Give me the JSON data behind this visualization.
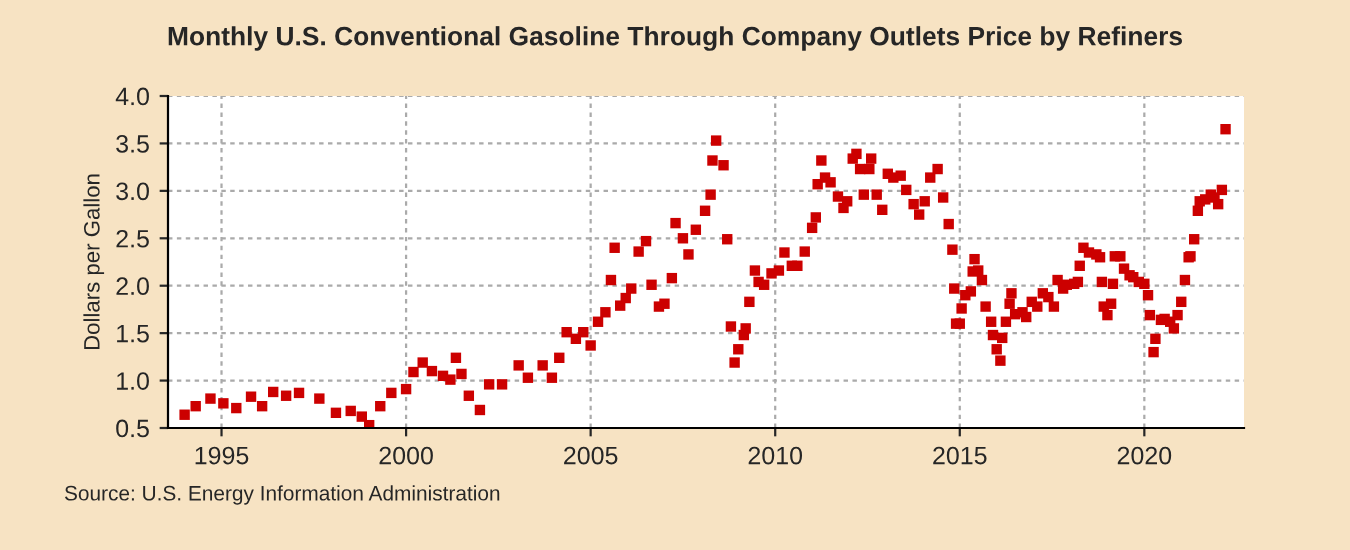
{
  "chart_data": {
    "type": "scatter",
    "title": "Monthly U.S. Conventional Gasoline Through Company Outlets Price by Refiners",
    "ylabel": "Dollars per Gallon",
    "annotations": [
      "Source: U.S. Energy Information Administration"
    ],
    "x": [
      1994.0,
      1994.3,
      1994.7,
      1995.05,
      1995.4,
      1995.8,
      1996.1,
      1996.4,
      1996.75,
      1997.1,
      1997.65,
      1998.1,
      1998.5,
      1998.8,
      1999.0,
      1999.3,
      1999.6,
      2000.0,
      2000.2,
      2000.45,
      2000.7,
      2001.0,
      2001.2,
      2001.35,
      2001.5,
      2001.7,
      2002.0,
      2002.25,
      2002.6,
      2003.05,
      2003.3,
      2003.7,
      2003.95,
      2004.15,
      2004.35,
      2004.6,
      2004.8,
      2005.0,
      2005.2,
      2005.4,
      2005.55,
      2005.65,
      2005.8,
      2005.95,
      2006.1,
      2006.3,
      2006.5,
      2006.65,
      2006.85,
      2007.0,
      2007.2,
      2007.3,
      2007.5,
      2007.65,
      2007.85,
      2008.1,
      2008.25,
      2008.3,
      2008.4,
      2008.6,
      2008.7,
      2008.8,
      2008.9,
      2009.0,
      2009.15,
      2009.2,
      2009.3,
      2009.45,
      2009.55,
      2009.7,
      2009.9,
      2010.1,
      2010.25,
      2010.45,
      2010.6,
      2010.8,
      2011.0,
      2011.1,
      2011.15,
      2011.25,
      2011.35,
      2011.5,
      2011.7,
      2011.85,
      2011.95,
      2012.1,
      2012.2,
      2012.3,
      2012.4,
      2012.55,
      2012.6,
      2012.75,
      2012.9,
      2013.05,
      2013.2,
      2013.4,
      2013.55,
      2013.75,
      2013.9,
      2014.05,
      2014.2,
      2014.4,
      2014.55,
      2014.7,
      2014.8,
      2014.85,
      2014.9,
      2015.0,
      2015.05,
      2015.15,
      2015.3,
      2015.35,
      2015.4,
      2015.5,
      2015.6,
      2015.7,
      2015.85,
      2015.9,
      2016.0,
      2016.1,
      2016.15,
      2016.25,
      2016.35,
      2016.4,
      2016.5,
      2016.7,
      2016.8,
      2016.95,
      2017.1,
      2017.25,
      2017.4,
      2017.55,
      2017.65,
      2017.8,
      2017.9,
      2018.1,
      2018.2,
      2018.25,
      2018.35,
      2018.5,
      2018.7,
      2018.8,
      2018.85,
      2018.9,
      2019.0,
      2019.1,
      2019.15,
      2019.2,
      2019.35,
      2019.45,
      2019.6,
      2019.7,
      2019.85,
      2020.0,
      2020.1,
      2020.15,
      2020.25,
      2020.3,
      2020.45,
      2020.55,
      2020.7,
      2020.8,
      2020.9,
      2021.0,
      2021.1,
      2021.2,
      2021.25,
      2021.35,
      2021.45,
      2021.5,
      2021.65,
      2021.8,
      2021.9,
      2022.0,
      2022.1,
      2022.2
    ],
    "series": [
      {
        "color": "#cc0000",
        "values": [
          0.64,
          0.73,
          0.81,
          0.76,
          0.71,
          0.83,
          0.73,
          0.88,
          0.84,
          0.87,
          0.81,
          0.66,
          0.68,
          0.62,
          0.53,
          0.73,
          0.87,
          0.91,
          1.09,
          1.19,
          1.1,
          1.05,
          1.01,
          1.24,
          1.07,
          0.84,
          0.69,
          0.96,
          0.96,
          1.16,
          1.03,
          1.16,
          1.03,
          1.24,
          1.51,
          1.44,
          1.51,
          1.37,
          1.62,
          1.72,
          2.06,
          2.4,
          1.79,
          1.87,
          1.97,
          2.36,
          2.47,
          2.01,
          1.78,
          1.81,
          2.08,
          2.66,
          2.5,
          2.33,
          2.59,
          2.79,
          2.96,
          3.32,
          3.53,
          3.27,
          2.49,
          1.57,
          1.19,
          1.33,
          1.48,
          1.55,
          1.83,
          2.16,
          2.04,
          2.01,
          2.13,
          2.16,
          2.35,
          2.21,
          2.21,
          2.36,
          2.61,
          2.72,
          3.07,
          3.32,
          3.14,
          3.09,
          2.94,
          2.82,
          2.89,
          3.34,
          3.39,
          3.23,
          2.96,
          3.23,
          3.34,
          2.96,
          2.8,
          3.18,
          3.14,
          3.16,
          3.01,
          2.86,
          2.75,
          2.89,
          3.14,
          3.23,
          2.93,
          2.65,
          2.38,
          1.97,
          1.6,
          1.6,
          1.76,
          1.9,
          1.94,
          2.15,
          2.28,
          2.16,
          2.06,
          1.78,
          1.62,
          1.48,
          1.33,
          1.21,
          1.45,
          1.62,
          1.81,
          1.92,
          1.7,
          1.72,
          1.67,
          1.83,
          1.78,
          1.92,
          1.88,
          1.78,
          2.06,
          1.97,
          2.01,
          2.02,
          2.04,
          2.21,
          2.4,
          2.35,
          2.33,
          2.3,
          2.04,
          1.78,
          1.69,
          1.81,
          2.02,
          2.31,
          2.31,
          2.18,
          2.11,
          2.09,
          2.04,
          2.02,
          1.9,
          1.69,
          1.3,
          1.44,
          1.64,
          1.65,
          1.62,
          1.55,
          1.69,
          1.83,
          2.06,
          2.3,
          2.31,
          2.49,
          2.79,
          2.89,
          2.91,
          2.96,
          2.93,
          2.86,
          3.01,
          3.65
        ]
      }
    ],
    "xlim": [
      1993.55,
      2022.7
    ],
    "xticks": [
      1995,
      2000,
      2005,
      2010,
      2015,
      2020
    ],
    "ylim": [
      0.5,
      4.0
    ],
    "yticks": [
      {
        "value": 0.5,
        "label": "0.5"
      },
      {
        "value": 1.0,
        "label": "1.0"
      },
      {
        "value": 1.5,
        "label": "1.5"
      },
      {
        "value": 2.0,
        "label": "2.0"
      },
      {
        "value": 2.5,
        "label": "2.5"
      },
      {
        "value": 3.0,
        "label": "3.0"
      },
      {
        "value": 3.5,
        "label": "3.5"
      },
      {
        "value": 4.0,
        "label": "4.0"
      }
    ],
    "grid": true,
    "marker": "square"
  }
}
